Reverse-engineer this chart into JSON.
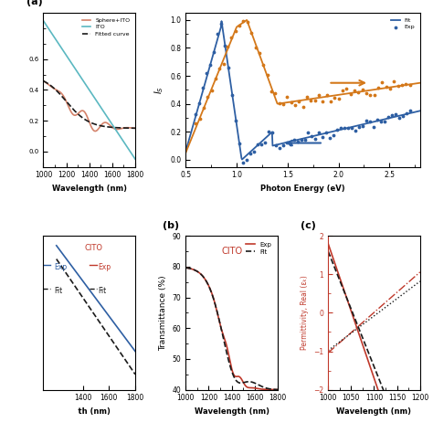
{
  "background": "#ffffff",
  "fig_width": 4.74,
  "fig_height": 4.74,
  "dpi": 100,
  "panel_a": {
    "label": "(a)",
    "xlabel": "Wavelength (nm)",
    "ylabel": "",
    "xlim": [
      1000,
      1800
    ],
    "ylim_auto": true,
    "xticks": [
      1000,
      1200,
      1400,
      1600,
      1800
    ],
    "legend": [
      "Sphere+ITO",
      "ITO",
      "Fitted curve"
    ],
    "sphere_ito_color": "#d4826a",
    "ito_color": "#5bb8c1",
    "fitted_color": "#1a1a1a",
    "ytick_labels": [
      "0",
      "",
      "",
      "",
      ""
    ]
  },
  "panel_b": {
    "label": "(b)",
    "title": "CITO",
    "title_color": "#c0392b",
    "xlabel": "Wavelength (nm)",
    "ylabel": "Transmittance (%)",
    "xlim": [
      1000,
      1800
    ],
    "ylim": [
      40,
      90
    ],
    "xticks": [
      1000,
      1200,
      1400,
      1600,
      1800
    ],
    "yticks": [
      40,
      50,
      60,
      70,
      80,
      90
    ],
    "exp_color": "#c0392b",
    "fit_color": "#1a1a1a",
    "legend_exp": "Exp",
    "legend_fit": "Fit"
  },
  "panel_c": {
    "label": "(c)",
    "xlabel": "Wavelength (nm)",
    "ylabel_left": "Permittivity, Real (εₖ)",
    "ylabel_color": "#c0392b",
    "xlim": [
      1000,
      1200
    ],
    "ylim": [
      -2,
      2
    ],
    "yticks": [
      -2,
      -1,
      0,
      1,
      2
    ],
    "exp_color": "#c0392b",
    "fit_color": "#1a1a1a"
  },
  "panel_top_right": {
    "xlabel": "Photon Energy (eV)",
    "ylabel": "I_S",
    "xlim": [
      0.5,
      2.8
    ],
    "ylim": [
      -0.05,
      1.05
    ],
    "yticks": [
      0.0,
      0.2,
      0.4,
      0.6,
      0.8,
      1.0
    ],
    "blue_color": "#2e5fa3",
    "orange_color": "#d4781a",
    "legend_fit": "Fit",
    "legend_exp": "Exp"
  },
  "panel_bottom_left_legend": {
    "exp_label": "Exp",
    "fit_label": "Fit",
    "exp_color": "#2e5fa3",
    "fit_color": "#1a1a1a"
  },
  "panel_bottom_mid_legend": {
    "title": "CITO",
    "title_color": "#c0392b",
    "exp_label": "Exp",
    "fit_label": "Fit",
    "exp_color": "#c0392b",
    "fit_color": "#1a1a1a"
  }
}
